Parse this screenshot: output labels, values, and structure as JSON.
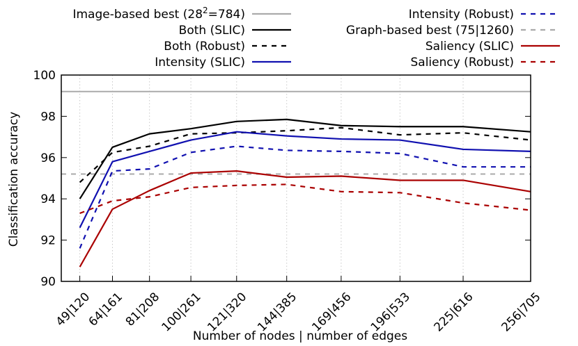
{
  "chart_data": {
    "type": "line",
    "xlabel": "Number of nodes | number of edges",
    "ylabel": "Classification accuracy",
    "ylim": [
      90,
      100
    ],
    "yticks": [
      90,
      92,
      94,
      96,
      98,
      100
    ],
    "categories": [
      "49|120",
      "64|161",
      "81|208",
      "100|261",
      "121|320",
      "144|385",
      "169|456",
      "196|533",
      "225|616",
      "256|705"
    ],
    "x_nodes": [
      49,
      64,
      81,
      100,
      121,
      144,
      169,
      196,
      225,
      256
    ],
    "grid": "vertical dotted at each category",
    "legend_position": "top, above plot, two columns",
    "series": [
      {
        "name": "Image-based best (28²=784)",
        "name_base": "Image-based best (28",
        "name_sup": "2",
        "name_rest": "=784)",
        "color": "#aaaaaa",
        "dash": "solid",
        "type": "reference",
        "value": 99.2
      },
      {
        "name": "Both (SLIC)",
        "color": "#000000",
        "dash": "solid",
        "values": [
          94.0,
          96.5,
          97.15,
          97.4,
          97.75,
          97.85,
          97.55,
          97.5,
          97.5,
          97.25
        ]
      },
      {
        "name": "Both (Robust)",
        "color": "#000000",
        "dash": "dashed",
        "values": [
          94.8,
          96.25,
          96.55,
          97.15,
          97.2,
          97.3,
          97.45,
          97.1,
          97.2,
          96.85
        ]
      },
      {
        "name": "Intensity (SLIC)",
        "color": "#1010b0",
        "dash": "solid",
        "values": [
          92.6,
          95.8,
          96.3,
          96.85,
          97.25,
          97.05,
          96.9,
          96.85,
          96.4,
          96.3
        ]
      },
      {
        "name": "Intensity (Robust)",
        "color": "#1010b0",
        "dash": "dashed",
        "values": [
          91.6,
          95.35,
          95.45,
          96.25,
          96.55,
          96.35,
          96.3,
          96.2,
          95.55,
          95.55
        ]
      },
      {
        "name": "Graph-based best (75|1260)",
        "color": "#aaaaaa",
        "dash": "dashed",
        "type": "reference",
        "value": 95.2
      },
      {
        "name": "Saliency (SLIC)",
        "color": "#aa0000",
        "dash": "solid",
        "values": [
          90.7,
          93.5,
          94.4,
          95.25,
          95.35,
          95.05,
          95.1,
          94.9,
          94.9,
          94.35
        ]
      },
      {
        "name": "Saliency (Robust)",
        "color": "#aa0000",
        "dash": "dashed",
        "values": [
          93.3,
          93.9,
          94.1,
          94.55,
          94.65,
          94.7,
          94.35,
          94.3,
          93.8,
          93.45
        ]
      }
    ]
  }
}
